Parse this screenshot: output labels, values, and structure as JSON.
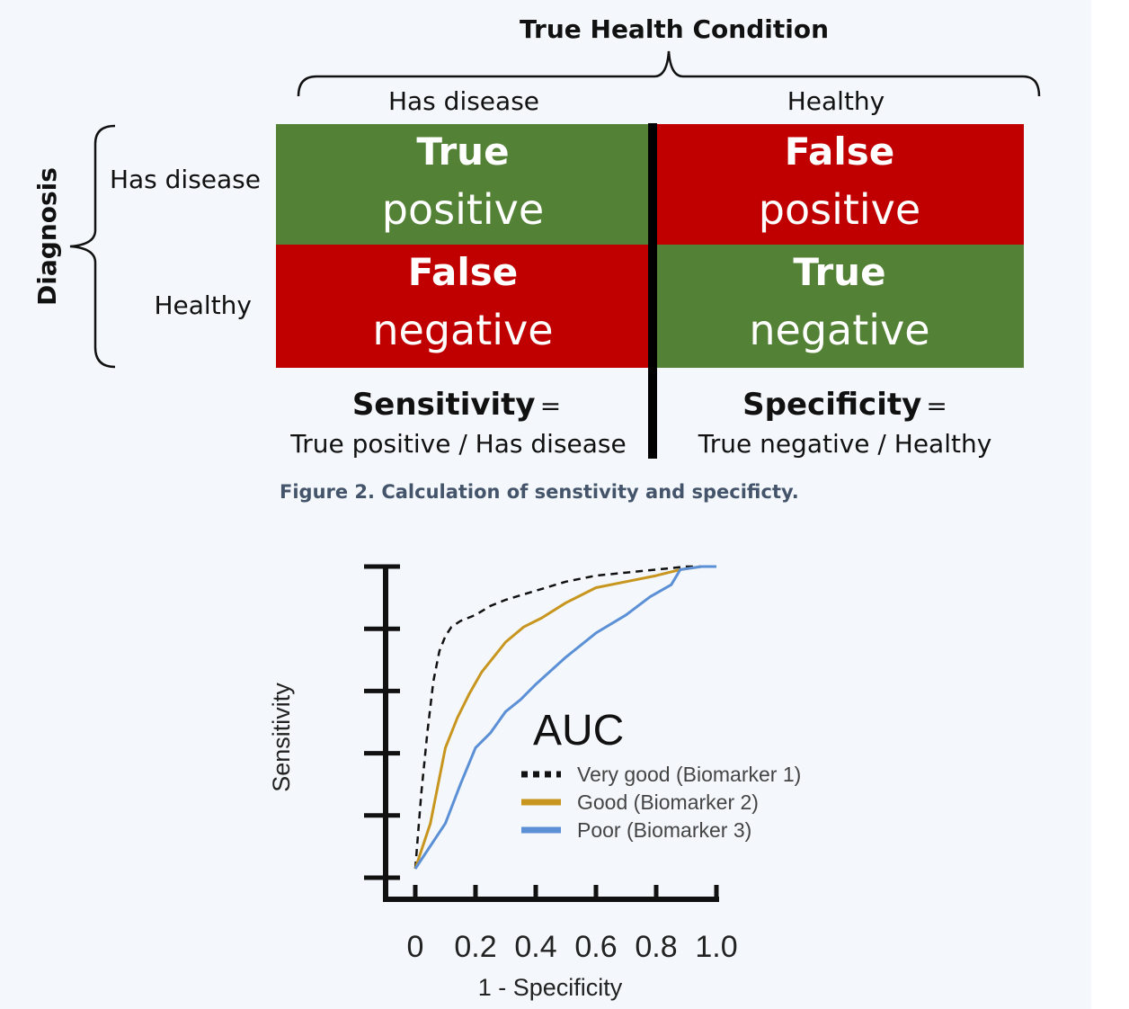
{
  "confusion_matrix": {
    "title": "True Health Condition",
    "columns": [
      "Has disease",
      "Healthy"
    ],
    "row_axis_label": "Diagnosis",
    "rows": [
      "Has disease",
      "Healthy"
    ],
    "cells": {
      "tp": {
        "line1": "True",
        "line2": "positive"
      },
      "fp": {
        "line1": "False",
        "line2": "positive"
      },
      "fn": {
        "line1": "False",
        "line2": "negative"
      },
      "tn": {
        "line1": "True",
        "line2": "negative"
      }
    },
    "sensitivity": {
      "name": "Sensitivity",
      "eq": "=",
      "formula": "True positive / Has disease"
    },
    "specificity": {
      "name": "Specificity",
      "eq": "=",
      "formula": "True negative / Healthy"
    },
    "caption": "Figure 2. Calculation of senstivity and specificty.",
    "colors": {
      "positive_outcome": "#538135",
      "negative_outcome": "#c00000"
    }
  },
  "chart_data": {
    "type": "line",
    "title": "AUC",
    "xlabel": "1 - Specificity",
    "ylabel": "Sensitivity",
    "xlim": [
      0,
      1
    ],
    "ylim": [
      0,
      1
    ],
    "x_ticks": [
      "0",
      "0.2",
      "0.4",
      "0.6",
      "0.8",
      "1.0"
    ],
    "legend_position": "center-right",
    "series": [
      {
        "name": "Very good (Biomarker 1)",
        "color": "#111111",
        "style": "dotted",
        "x": [
          0,
          0.02,
          0.04,
          0.06,
          0.08,
          0.1,
          0.12,
          0.15,
          0.2,
          0.25,
          0.3,
          0.4,
          0.5,
          0.6,
          0.7,
          0.8,
          0.9,
          1.0
        ],
        "y": [
          0,
          0.25,
          0.45,
          0.62,
          0.72,
          0.77,
          0.8,
          0.82,
          0.84,
          0.87,
          0.89,
          0.92,
          0.95,
          0.97,
          0.98,
          0.99,
          1.0,
          1.0
        ]
      },
      {
        "name": "Good (Biomarker 2)",
        "color": "#c8961e",
        "style": "solid",
        "x": [
          0,
          0.05,
          0.08,
          0.1,
          0.14,
          0.18,
          0.22,
          0.3,
          0.36,
          0.42,
          0.5,
          0.6,
          0.7,
          0.8,
          0.88,
          0.95,
          1.0
        ],
        "y": [
          0,
          0.15,
          0.3,
          0.4,
          0.5,
          0.58,
          0.65,
          0.75,
          0.8,
          0.83,
          0.88,
          0.93,
          0.95,
          0.97,
          0.99,
          1.0,
          1.0
        ]
      },
      {
        "name": "Poor (Biomarker 3)",
        "color": "#5b8fd6",
        "style": "solid",
        "x": [
          0,
          0.1,
          0.15,
          0.2,
          0.25,
          0.3,
          0.35,
          0.4,
          0.5,
          0.6,
          0.7,
          0.78,
          0.85,
          0.88,
          0.95,
          1.0
        ],
        "y": [
          0,
          0.15,
          0.28,
          0.4,
          0.45,
          0.52,
          0.56,
          0.61,
          0.7,
          0.78,
          0.84,
          0.9,
          0.94,
          0.99,
          1.0,
          1.0
        ]
      }
    ]
  }
}
